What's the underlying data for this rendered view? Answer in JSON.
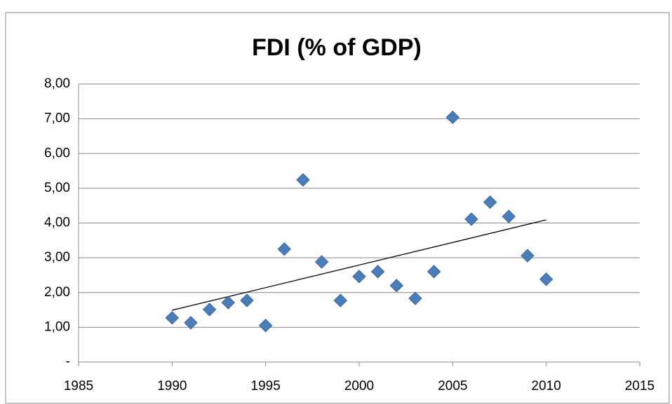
{
  "chart_data": {
    "type": "scatter",
    "title": "FDI (% of GDP)",
    "x": [
      1990,
      1991,
      1992,
      1993,
      1994,
      1995,
      1996,
      1997,
      1998,
      1999,
      2000,
      2001,
      2002,
      2003,
      2004,
      2005,
      2006,
      2007,
      2008,
      2009,
      2010
    ],
    "values": [
      1.27,
      1.13,
      1.51,
      1.71,
      1.77,
      1.05,
      3.25,
      5.24,
      2.88,
      1.77,
      2.46,
      2.6,
      2.2,
      1.83,
      2.6,
      7.04,
      4.11,
      4.6,
      4.19,
      3.06,
      2.38
    ],
    "color": "#4a7ebb",
    "trendline": {
      "x": [
        1990,
        2010
      ],
      "y": [
        1.49,
        4.09
      ],
      "color": "#000000"
    },
    "xlim": [
      1985,
      2015
    ],
    "xticks": [
      1985,
      1990,
      1995,
      2000,
      2005,
      2010,
      2015
    ],
    "ylim": [
      0,
      8
    ],
    "yticks": [
      {
        "value": 0,
        "label": "-"
      },
      {
        "value": 1,
        "label": "1,00"
      },
      {
        "value": 2,
        "label": "2,00"
      },
      {
        "value": 3,
        "label": "3,00"
      },
      {
        "value": 4,
        "label": "4,00"
      },
      {
        "value": 5,
        "label": "5,00"
      },
      {
        "value": 6,
        "label": "6,00"
      },
      {
        "value": 7,
        "label": "7,00"
      },
      {
        "value": 8,
        "label": "8,00"
      }
    ],
    "grid": true
  }
}
